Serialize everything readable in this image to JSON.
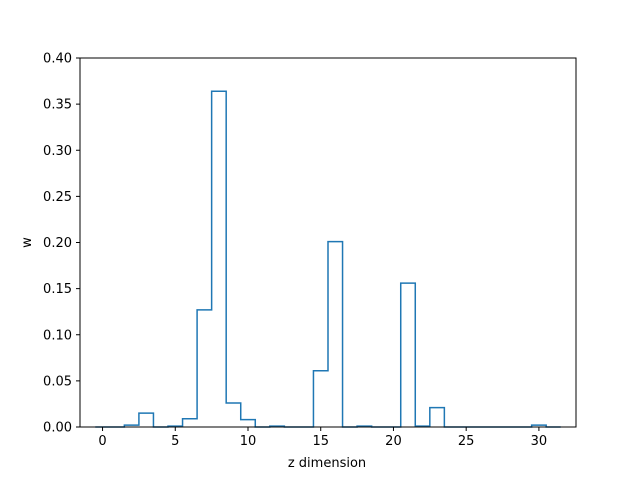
{
  "chart_data": {
    "type": "step",
    "xlabel": "z dimension",
    "ylabel": "w",
    "xlim": [
      -1.55,
      32.55
    ],
    "ylim": [
      0,
      0.4
    ],
    "xticks": [
      0,
      5,
      10,
      15,
      20,
      25,
      30
    ],
    "yticks": [
      0.0,
      0.05,
      0.1,
      0.15,
      0.2,
      0.25,
      0.3,
      0.35,
      0.4
    ],
    "ytick_labels": [
      "0.00",
      "0.05",
      "0.10",
      "0.15",
      "0.20",
      "0.25",
      "0.30",
      "0.35",
      "0.40"
    ],
    "x": [
      0,
      1,
      2,
      3,
      4,
      5,
      6,
      7,
      8,
      9,
      10,
      11,
      12,
      13,
      14,
      15,
      16,
      17,
      18,
      19,
      20,
      21,
      22,
      23,
      24,
      25,
      26,
      27,
      28,
      29,
      30,
      31
    ],
    "values": [
      0.0,
      0.0,
      0.002,
      0.015,
      0.0,
      0.001,
      0.009,
      0.127,
      0.364,
      0.026,
      0.008,
      0.0,
      0.001,
      0.0,
      0.0,
      0.061,
      0.201,
      0.0,
      0.001,
      0.0,
      0.0,
      0.156,
      0.001,
      0.021,
      0.0,
      0.0,
      0.0,
      0.0,
      0.0,
      0.0,
      0.002,
      0.0
    ],
    "line_color": "#1f77b4",
    "grid": false
  }
}
